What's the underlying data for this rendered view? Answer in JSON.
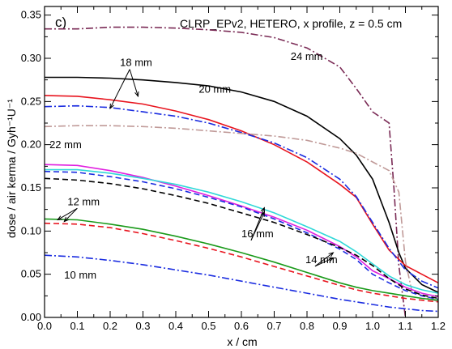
{
  "chart_data": {
    "type": "line",
    "title": "CLRP_EPv2, HETERO, x profile, z = 0.5 cm",
    "panel_label": "c)",
    "xlabel": "x / cm",
    "ylabel": "dose / air kerma / Gyh⁻¹U⁻¹",
    "xlim": [
      0.0,
      1.2
    ],
    "ylim": [
      0.0,
      0.36
    ],
    "x_ticks": [
      "0.0",
      "0.1",
      "0.2",
      "0.3",
      "0.4",
      "0.5",
      "0.6",
      "0.7",
      "0.8",
      "0.9",
      "1.0",
      "1.1",
      "1.2"
    ],
    "y_ticks": [
      "0.00",
      "0.05",
      "0.10",
      "0.15",
      "0.20",
      "0.25",
      "0.30",
      "0.35"
    ],
    "grid": false,
    "series": [
      {
        "name": "24 mm",
        "color": "#7a2a55",
        "dash": "dashdot",
        "points": [
          [
            0.0,
            0.334
          ],
          [
            0.1,
            0.334
          ],
          [
            0.2,
            0.336
          ],
          [
            0.3,
            0.336
          ],
          [
            0.4,
            0.335
          ],
          [
            0.5,
            0.333
          ],
          [
            0.6,
            0.33
          ],
          [
            0.7,
            0.324
          ],
          [
            0.8,
            0.312
          ],
          [
            0.9,
            0.29
          ],
          [
            0.95,
            0.265
          ],
          [
            1.0,
            0.238
          ],
          [
            1.05,
            0.225
          ],
          [
            1.065,
            0.15
          ],
          [
            1.08,
            0.06
          ],
          [
            1.1,
            0.0
          ]
        ]
      },
      {
        "name": "20 mm",
        "color": "#000000",
        "dash": "solid",
        "points": [
          [
            0.0,
            0.278
          ],
          [
            0.1,
            0.278
          ],
          [
            0.2,
            0.277
          ],
          [
            0.3,
            0.275
          ],
          [
            0.4,
            0.272
          ],
          [
            0.5,
            0.268
          ],
          [
            0.6,
            0.261
          ],
          [
            0.7,
            0.25
          ],
          [
            0.8,
            0.233
          ],
          [
            0.9,
            0.207
          ],
          [
            0.95,
            0.188
          ],
          [
            1.0,
            0.16
          ],
          [
            1.02,
            0.14
          ],
          [
            1.05,
            0.11
          ],
          [
            1.08,
            0.075
          ],
          [
            1.1,
            0.057
          ],
          [
            1.15,
            0.038
          ],
          [
            1.2,
            0.029
          ]
        ]
      },
      {
        "name": "18 mm",
        "color": "#e8141e",
        "dash": "solid",
        "points": [
          [
            0.0,
            0.257
          ],
          [
            0.1,
            0.256
          ],
          [
            0.2,
            0.252
          ],
          [
            0.3,
            0.247
          ],
          [
            0.4,
            0.239
          ],
          [
            0.5,
            0.229
          ],
          [
            0.6,
            0.216
          ],
          [
            0.7,
            0.2
          ],
          [
            0.8,
            0.18
          ],
          [
            0.9,
            0.154
          ],
          [
            0.95,
            0.139
          ],
          [
            1.0,
            0.108
          ],
          [
            1.05,
            0.078
          ],
          [
            1.1,
            0.06
          ],
          [
            1.15,
            0.05
          ],
          [
            1.2,
            0.04
          ]
        ]
      },
      {
        "name": "18 mm",
        "color": "#1a2ce0",
        "dash": "dashdot",
        "points": [
          [
            0.0,
            0.244
          ],
          [
            0.1,
            0.245
          ],
          [
            0.2,
            0.243
          ],
          [
            0.3,
            0.238
          ],
          [
            0.4,
            0.233
          ],
          [
            0.5,
            0.225
          ],
          [
            0.6,
            0.214
          ],
          [
            0.7,
            0.202
          ],
          [
            0.8,
            0.185
          ],
          [
            0.9,
            0.16
          ],
          [
            0.95,
            0.14
          ],
          [
            1.0,
            0.11
          ],
          [
            1.05,
            0.08
          ],
          [
            1.1,
            0.055
          ],
          [
            1.15,
            0.042
          ],
          [
            1.2,
            0.034
          ]
        ]
      },
      {
        "name": "22 mm",
        "color": "#c09a98",
        "dash": "dashdot",
        "points": [
          [
            0.0,
            0.221
          ],
          [
            0.1,
            0.222
          ],
          [
            0.2,
            0.222
          ],
          [
            0.3,
            0.221
          ],
          [
            0.4,
            0.219
          ],
          [
            0.5,
            0.216
          ],
          [
            0.6,
            0.213
          ],
          [
            0.7,
            0.21
          ],
          [
            0.8,
            0.205
          ],
          [
            0.9,
            0.196
          ],
          [
            0.95,
            0.19
          ],
          [
            1.0,
            0.18
          ],
          [
            1.05,
            0.17
          ],
          [
            1.08,
            0.145
          ],
          [
            1.1,
            0.065
          ],
          [
            1.12,
            0.03
          ],
          [
            1.2,
            0.018
          ]
        ]
      },
      {
        "name": "16 mm",
        "color": "#e020e0",
        "dash": "solid",
        "points": [
          [
            0.0,
            0.177
          ],
          [
            0.1,
            0.176
          ],
          [
            0.2,
            0.17
          ],
          [
            0.3,
            0.162
          ],
          [
            0.4,
            0.152
          ],
          [
            0.5,
            0.141
          ],
          [
            0.6,
            0.129
          ],
          [
            0.7,
            0.116
          ],
          [
            0.8,
            0.101
          ],
          [
            0.9,
            0.082
          ],
          [
            0.95,
            0.07
          ],
          [
            1.0,
            0.054
          ],
          [
            1.05,
            0.045
          ],
          [
            1.1,
            0.035
          ],
          [
            1.15,
            0.028
          ],
          [
            1.2,
            0.024
          ]
        ]
      },
      {
        "name": "16 mm",
        "color": "#30d8d8",
        "dash": "solid",
        "points": [
          [
            0.0,
            0.171
          ],
          [
            0.1,
            0.171
          ],
          [
            0.2,
            0.167
          ],
          [
            0.3,
            0.161
          ],
          [
            0.4,
            0.154
          ],
          [
            0.5,
            0.145
          ],
          [
            0.6,
            0.134
          ],
          [
            0.7,
            0.121
          ],
          [
            0.8,
            0.105
          ],
          [
            0.9,
            0.088
          ],
          [
            0.95,
            0.076
          ],
          [
            1.0,
            0.062
          ],
          [
            1.05,
            0.048
          ],
          [
            1.1,
            0.038
          ],
          [
            1.15,
            0.032
          ],
          [
            1.2,
            0.028
          ]
        ]
      },
      {
        "name": "16 mm",
        "color": "#1a2ce0",
        "dash": "dashed",
        "points": [
          [
            0.0,
            0.169
          ],
          [
            0.1,
            0.168
          ],
          [
            0.2,
            0.163
          ],
          [
            0.3,
            0.157
          ],
          [
            0.4,
            0.149
          ],
          [
            0.5,
            0.139
          ],
          [
            0.6,
            0.128
          ],
          [
            0.7,
            0.114
          ],
          [
            0.8,
            0.098
          ],
          [
            0.9,
            0.079
          ],
          [
            0.95,
            0.067
          ],
          [
            1.0,
            0.05
          ],
          [
            1.05,
            0.04
          ],
          [
            1.1,
            0.031
          ],
          [
            1.15,
            0.025
          ],
          [
            1.2,
            0.021
          ]
        ]
      },
      {
        "name": "14 mm",
        "color": "#000000",
        "dash": "dashed",
        "points": [
          [
            0.0,
            0.161
          ],
          [
            0.1,
            0.159
          ],
          [
            0.2,
            0.155
          ],
          [
            0.3,
            0.149
          ],
          [
            0.4,
            0.141
          ],
          [
            0.5,
            0.132
          ],
          [
            0.6,
            0.121
          ],
          [
            0.7,
            0.11
          ],
          [
            0.8,
            0.096
          ],
          [
            0.9,
            0.081
          ],
          [
            0.95,
            0.072
          ],
          [
            1.0,
            0.06
          ],
          [
            1.05,
            0.045
          ],
          [
            1.1,
            0.033
          ],
          [
            1.15,
            0.026
          ],
          [
            1.2,
            0.022
          ]
        ]
      },
      {
        "name": "12 mm",
        "color": "#1a9a1a",
        "dash": "solid",
        "points": [
          [
            0.0,
            0.114
          ],
          [
            0.1,
            0.113
          ],
          [
            0.2,
            0.108
          ],
          [
            0.3,
            0.102
          ],
          [
            0.4,
            0.094
          ],
          [
            0.5,
            0.085
          ],
          [
            0.6,
            0.075
          ],
          [
            0.7,
            0.064
          ],
          [
            0.8,
            0.052
          ],
          [
            0.9,
            0.04
          ],
          [
            0.95,
            0.035
          ],
          [
            1.0,
            0.031
          ],
          [
            1.05,
            0.028
          ],
          [
            1.1,
            0.025
          ],
          [
            1.15,
            0.022
          ],
          [
            1.2,
            0.02
          ]
        ]
      },
      {
        "name": "12 mm",
        "color": "#e8141e",
        "dash": "dashed",
        "points": [
          [
            0.0,
            0.109
          ],
          [
            0.1,
            0.108
          ],
          [
            0.2,
            0.104
          ],
          [
            0.3,
            0.097
          ],
          [
            0.4,
            0.089
          ],
          [
            0.5,
            0.08
          ],
          [
            0.6,
            0.07
          ],
          [
            0.7,
            0.059
          ],
          [
            0.8,
            0.048
          ],
          [
            0.9,
            0.037
          ],
          [
            0.95,
            0.032
          ],
          [
            1.0,
            0.028
          ],
          [
            1.05,
            0.025
          ],
          [
            1.1,
            0.022
          ],
          [
            1.15,
            0.02
          ],
          [
            1.2,
            0.018
          ]
        ]
      },
      {
        "name": "10 mm",
        "color": "#1a2ce0",
        "dash": "dashdot",
        "points": [
          [
            0.0,
            0.072
          ],
          [
            0.1,
            0.07
          ],
          [
            0.2,
            0.066
          ],
          [
            0.3,
            0.061
          ],
          [
            0.4,
            0.055
          ],
          [
            0.5,
            0.049
          ],
          [
            0.6,
            0.042
          ],
          [
            0.7,
            0.035
          ],
          [
            0.8,
            0.028
          ],
          [
            0.9,
            0.021
          ],
          [
            0.95,
            0.018
          ],
          [
            1.0,
            0.015
          ],
          [
            1.05,
            0.012
          ],
          [
            1.1,
            0.01
          ],
          [
            1.15,
            0.008
          ],
          [
            1.2,
            0.007
          ]
        ]
      }
    ],
    "annotations": [
      {
        "text": "24 mm",
        "x": 0.75,
        "y": 0.298
      },
      {
        "text": "20 mm",
        "x": 0.47,
        "y": 0.26
      },
      {
        "text": "18 mm",
        "x": 0.23,
        "y": 0.291,
        "arrows_to": [
          [
            0.2,
            0.242
          ],
          [
            0.285,
            0.256
          ]
        ]
      },
      {
        "text": "22 mm",
        "x": 0.015,
        "y": 0.196
      },
      {
        "text": "16 mm",
        "x": 0.6,
        "y": 0.093,
        "arrows_to": [
          [
            0.67,
            0.127
          ],
          [
            0.67,
            0.122
          ]
        ]
      },
      {
        "text": "14 mm",
        "x": 0.795,
        "y": 0.063,
        "arrows_to": [
          [
            0.88,
            0.075
          ],
          [
            0.88,
            0.069
          ]
        ]
      },
      {
        "text": "12 mm",
        "x": 0.07,
        "y": 0.13,
        "arrows_to": [
          [
            0.04,
            0.113
          ],
          [
            0.06,
            0.111
          ]
        ]
      },
      {
        "text": "10 mm",
        "x": 0.06,
        "y": 0.045
      }
    ]
  }
}
